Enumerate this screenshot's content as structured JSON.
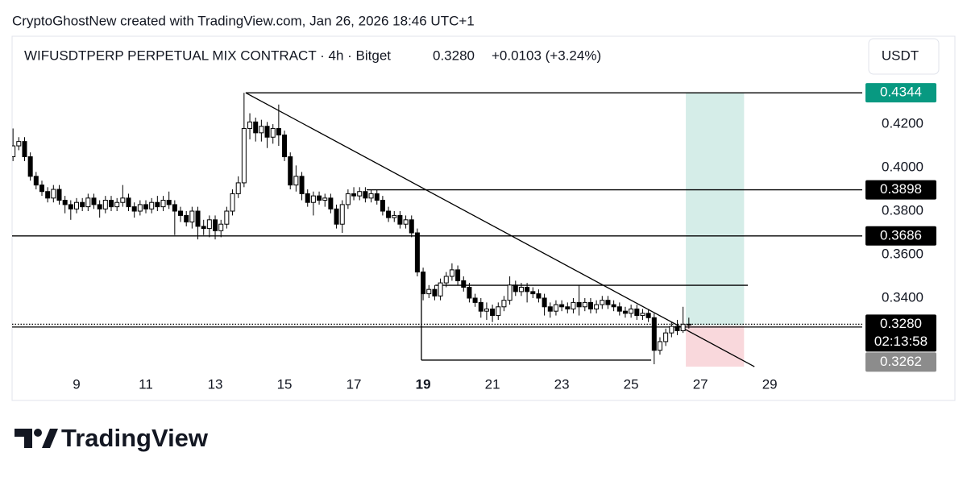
{
  "header": {
    "watermark": "CryptoGhostNew created with TradingView.com, Jan 26, 2026 18:46 UTC+1",
    "currency": "USDT"
  },
  "footer": {
    "logo_text": "TradingView"
  },
  "chart_data": {
    "type": "candlestick",
    "title": "WIFUSDTPERP PERPETUAL MIX CONTRACT · 4h · Bitget",
    "last_price": "0.3280",
    "change": "+0.0103 (+3.24%)",
    "x": [
      7.167,
      7.333,
      7.5,
      7.667,
      7.833,
      8,
      8.167,
      8.333,
      8.5,
      8.667,
      8.833,
      9,
      9.167,
      9.333,
      9.5,
      9.667,
      9.833,
      10,
      10.167,
      10.333,
      10.5,
      10.667,
      10.833,
      11,
      11.167,
      11.333,
      11.5,
      11.667,
      11.833,
      12,
      12.167,
      12.333,
      12.5,
      12.667,
      12.833,
      13,
      13.167,
      13.333,
      13.5,
      13.667,
      13.833,
      14,
      14.167,
      14.333,
      14.5,
      14.667,
      14.833,
      15,
      15.167,
      15.333,
      15.5,
      15.667,
      15.833,
      16,
      16.167,
      16.333,
      16.5,
      16.667,
      16.833,
      17,
      17.167,
      17.333,
      17.5,
      17.667,
      17.833,
      18,
      18.167,
      18.333,
      18.5,
      18.667,
      18.833,
      19,
      19.167,
      19.333,
      19.5,
      19.667,
      19.833,
      20,
      20.167,
      20.333,
      20.5,
      20.667,
      20.833,
      21,
      21.167,
      21.333,
      21.5,
      21.667,
      21.833,
      22,
      22.167,
      22.333,
      22.5,
      22.667,
      22.833,
      23,
      23.167,
      23.333,
      23.5,
      23.667,
      23.833,
      24,
      24.167,
      24.333,
      24.5,
      24.667,
      24.833,
      25,
      25.167,
      25.333,
      25.5,
      25.667,
      25.833,
      26,
      26.167,
      26.333,
      26.5,
      26.667
    ],
    "open": [
      0.405,
      0.41,
      0.412,
      0.405,
      0.396,
      0.392,
      0.389,
      0.386,
      0.39,
      0.385,
      0.383,
      0.381,
      0.384,
      0.382,
      0.386,
      0.383,
      0.381,
      0.385,
      0.382,
      0.384,
      0.386,
      0.382,
      0.38,
      0.383,
      0.381,
      0.384,
      0.382,
      0.385,
      0.383,
      0.38,
      0.378,
      0.375,
      0.38,
      0.373,
      0.372,
      0.376,
      0.371,
      0.374,
      0.38,
      0.388,
      0.393,
      0.418,
      0.421,
      0.416,
      0.419,
      0.414,
      0.418,
      0.415,
      0.405,
      0.392,
      0.396,
      0.388,
      0.384,
      0.387,
      0.385,
      0.386,
      0.381,
      0.374,
      0.383,
      0.388,
      0.387,
      0.389,
      0.386,
      0.388,
      0.385,
      0.38,
      0.377,
      0.378,
      0.374,
      0.376,
      0.37,
      0.352,
      0.342,
      0.344,
      0.341,
      0.347,
      0.35,
      0.353,
      0.348,
      0.345,
      0.34,
      0.338,
      0.334,
      0.335,
      0.332,
      0.336,
      0.339,
      0.346,
      0.343,
      0.345,
      0.343,
      0.342,
      0.34,
      0.336,
      0.334,
      0.337,
      0.336,
      0.335,
      0.338,
      0.336,
      0.338,
      0.335,
      0.337,
      0.339,
      0.337,
      0.336,
      0.334,
      0.333,
      0.335,
      0.332,
      0.333,
      0.331,
      0.316,
      0.32,
      0.324,
      0.327,
      0.325,
      0.328
    ],
    "high": [
      0.418,
      0.414,
      0.414,
      0.407,
      0.398,
      0.394,
      0.391,
      0.392,
      0.392,
      0.387,
      0.385,
      0.386,
      0.386,
      0.388,
      0.388,
      0.385,
      0.387,
      0.387,
      0.386,
      0.392,
      0.388,
      0.384,
      0.385,
      0.385,
      0.386,
      0.387,
      0.387,
      0.389,
      0.385,
      0.382,
      0.38,
      0.382,
      0.382,
      0.376,
      0.378,
      0.378,
      0.376,
      0.382,
      0.39,
      0.396,
      0.4344,
      0.425,
      0.423,
      0.422,
      0.421,
      0.42,
      0.429,
      0.417,
      0.407,
      0.401,
      0.398,
      0.39,
      0.389,
      0.389,
      0.388,
      0.388,
      0.383,
      0.385,
      0.39,
      0.391,
      0.391,
      0.391,
      0.39,
      0.39,
      0.387,
      0.382,
      0.38,
      0.38,
      0.378,
      0.378,
      0.372,
      0.354,
      0.346,
      0.346,
      0.349,
      0.352,
      0.356,
      0.355,
      0.35,
      0.347,
      0.342,
      0.34,
      0.338,
      0.337,
      0.338,
      0.341,
      0.35,
      0.348,
      0.347,
      0.347,
      0.345,
      0.344,
      0.342,
      0.338,
      0.339,
      0.339,
      0.338,
      0.34,
      0.346,
      0.34,
      0.34,
      0.339,
      0.341,
      0.341,
      0.339,
      0.338,
      0.336,
      0.337,
      0.337,
      0.335,
      0.335,
      0.333,
      0.322,
      0.326,
      0.329,
      0.33,
      0.336,
      0.331
    ],
    "low": [
      0.403,
      0.408,
      0.403,
      0.394,
      0.39,
      0.387,
      0.384,
      0.384,
      0.383,
      0.379,
      0.376,
      0.379,
      0.38,
      0.38,
      0.381,
      0.377,
      0.379,
      0.38,
      0.38,
      0.382,
      0.38,
      0.377,
      0.378,
      0.379,
      0.379,
      0.38,
      0.38,
      0.381,
      0.369,
      0.375,
      0.373,
      0.372,
      0.367,
      0.369,
      0.368,
      0.367,
      0.368,
      0.372,
      0.378,
      0.386,
      0.391,
      0.413,
      0.412,
      0.412,
      0.409,
      0.411,
      0.41,
      0.403,
      0.39,
      0.389,
      0.385,
      0.382,
      0.378,
      0.383,
      0.382,
      0.379,
      0.372,
      0.37,
      0.381,
      0.385,
      0.385,
      0.384,
      0.384,
      0.383,
      0.378,
      0.375,
      0.375,
      0.372,
      0.372,
      0.368,
      0.35,
      0.339,
      0.34,
      0.339,
      0.339,
      0.345,
      0.348,
      0.346,
      0.343,
      0.338,
      0.336,
      0.331,
      0.33,
      0.329,
      0.33,
      0.334,
      0.337,
      0.341,
      0.341,
      0.338,
      0.34,
      0.338,
      0.332,
      0.331,
      0.332,
      0.334,
      0.333,
      0.333,
      0.332,
      0.334,
      0.333,
      0.333,
      0.335,
      0.335,
      0.334,
      0.332,
      0.331,
      0.331,
      0.33,
      0.33,
      0.329,
      0.3096,
      0.314,
      0.318,
      0.322,
      0.323,
      0.324,
      0.326
    ],
    "close": [
      0.41,
      0.412,
      0.405,
      0.396,
      0.392,
      0.389,
      0.386,
      0.39,
      0.385,
      0.383,
      0.381,
      0.384,
      0.382,
      0.386,
      0.383,
      0.381,
      0.385,
      0.382,
      0.384,
      0.386,
      0.382,
      0.38,
      0.383,
      0.381,
      0.384,
      0.382,
      0.385,
      0.383,
      0.38,
      0.378,
      0.375,
      0.38,
      0.373,
      0.372,
      0.376,
      0.371,
      0.374,
      0.38,
      0.388,
      0.393,
      0.418,
      0.421,
      0.416,
      0.419,
      0.414,
      0.418,
      0.415,
      0.405,
      0.392,
      0.396,
      0.388,
      0.384,
      0.387,
      0.385,
      0.386,
      0.381,
      0.374,
      0.383,
      0.388,
      0.387,
      0.389,
      0.386,
      0.388,
      0.385,
      0.38,
      0.377,
      0.378,
      0.374,
      0.376,
      0.37,
      0.352,
      0.342,
      0.344,
      0.341,
      0.347,
      0.35,
      0.353,
      0.348,
      0.345,
      0.34,
      0.338,
      0.334,
      0.335,
      0.332,
      0.336,
      0.339,
      0.346,
      0.343,
      0.345,
      0.343,
      0.342,
      0.34,
      0.336,
      0.334,
      0.337,
      0.336,
      0.335,
      0.338,
      0.336,
      0.338,
      0.335,
      0.337,
      0.339,
      0.337,
      0.336,
      0.334,
      0.333,
      0.335,
      0.332,
      0.333,
      0.331,
      0.316,
      0.32,
      0.324,
      0.327,
      0.325,
      0.328,
      0.328
    ],
    "up_color": "#ffffff",
    "down_color": "#000000",
    "wick_color": "#000000",
    "xlim": [
      7.14,
      31.67
    ],
    "xticks": [
      9,
      11,
      13,
      15,
      17,
      19,
      21,
      23,
      25,
      27,
      29
    ],
    "bold_xticks": [
      19
    ],
    "ylim": [
      0.3048,
      0.4604
    ],
    "yticks": [
      {
        "value": 0.42,
        "label": "0.4200"
      },
      {
        "value": 0.4,
        "label": "0.4000"
      },
      {
        "value": 0.38,
        "label": "0.3800"
      },
      {
        "value": 0.36,
        "label": "0.3600"
      },
      {
        "value": 0.34,
        "label": "0.3400"
      }
    ],
    "grid": false,
    "price_labels": [
      {
        "value": 0.4344,
        "label": "0.4344",
        "color": "#089981"
      },
      {
        "value": 0.3898,
        "label": "0.3898",
        "color": "#000000"
      },
      {
        "value": 0.3686,
        "label": "0.3686",
        "color": "#000000"
      },
      {
        "value": 0.328,
        "label": "0.3280",
        "color": "#000000"
      },
      {
        "value": 0.3262,
        "label": "0.3262",
        "color": "#8c8c8c"
      }
    ],
    "countdown": "02:13:58",
    "lines": [
      {
        "x": [
          13.88,
          31.67
        ],
        "y": [
          0.4344,
          0.4344
        ],
        "style": "solid"
      },
      {
        "x": [
          17.37,
          31.67
        ],
        "y": [
          0.3898,
          0.3898
        ],
        "style": "solid"
      },
      {
        "x": [
          7.14,
          31.67
        ],
        "y": [
          0.3686,
          0.3686
        ],
        "style": "solid"
      },
      {
        "x": [
          7.14,
          31.67
        ],
        "y": [
          0.3267,
          0.3267
        ],
        "style": "solid"
      },
      {
        "x": [
          7.14,
          31.67
        ],
        "y": [
          0.328,
          0.328
        ],
        "style": "dotted"
      },
      {
        "x": [
          19.35,
          28.37
        ],
        "y": [
          0.3459,
          0.3459
        ],
        "style": "solid"
      },
      {
        "x": [
          18.95,
          25.58
        ],
        "y": [
          0.3115,
          0.3115
        ],
        "style": "solid"
      },
      {
        "x": [
          18.95,
          18.95
        ],
        "y": [
          0.3115,
          0.3419
        ],
        "style": "solid"
      },
      {
        "x": [
          13.88,
          28.56
        ],
        "y": [
          0.4344,
          0.3085
        ],
        "style": "solid"
      }
    ],
    "position": {
      "x": [
        26.58,
        28.26
      ],
      "entry": 0.3274,
      "target": 0.4344,
      "stop": 0.3085,
      "target_color": "#d5ede8",
      "stop_color": "#f9d8dc"
    }
  }
}
